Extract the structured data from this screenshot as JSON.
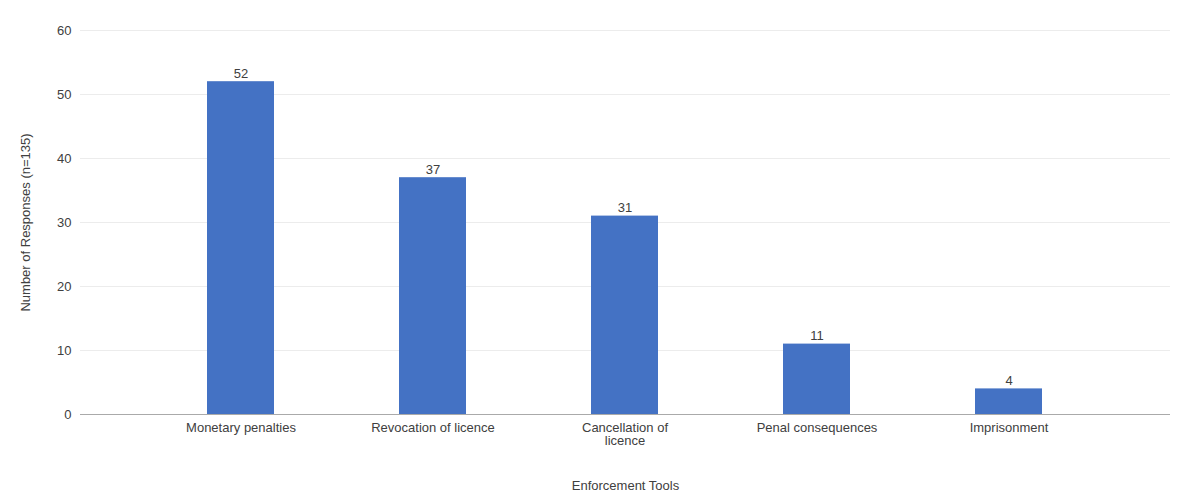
{
  "chart_data": {
    "type": "bar",
    "categories": [
      "Monetary penalties",
      "Revocation of licence",
      "Cancellation of\nlicence",
      "Penal consequences",
      "Imprisonment"
    ],
    "values": [
      52,
      37,
      31,
      11,
      4
    ],
    "color": "#4472C4",
    "xlabel": "Enforcement Tools",
    "ylabel": "Number of Responses (n=135)",
    "ylim": [
      0,
      60
    ],
    "yticks": [
      0,
      10,
      20,
      30,
      40,
      50,
      60
    ],
    "grid": true,
    "data_labels": true
  }
}
